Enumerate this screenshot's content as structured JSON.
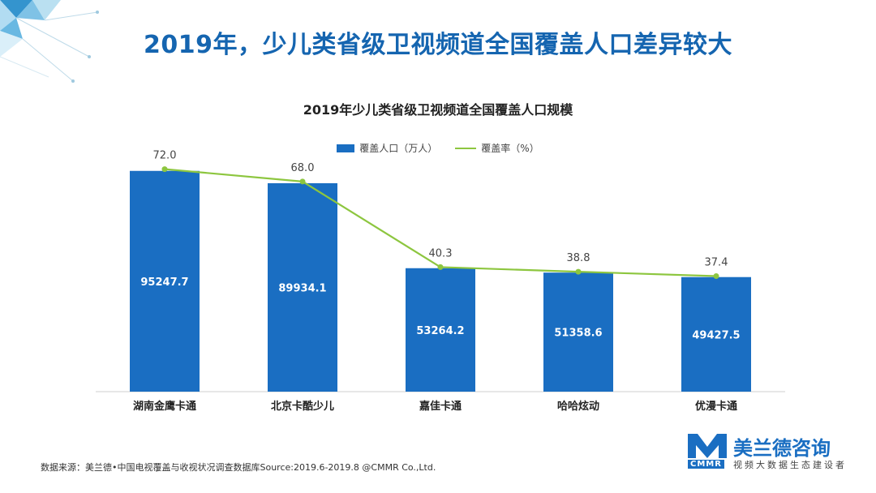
{
  "slide_title": "2019年，少儿类省级卫视频道全国覆盖人口差异较大",
  "legend": {
    "bar_label": "覆盖人口（万人）",
    "line_label": "覆盖率（%）"
  },
  "source": "数据来源：美兰德•中国电视覆盖与收视状况调查数据库Source:2019.6-2019.8 @CMMR Co.,Ltd.",
  "brand": {
    "name": "美兰德咨询",
    "code": "CMMR",
    "tagline": "视频大数据生态建设者"
  },
  "colors": {
    "title": "#1565b0",
    "bar": "#1a6ec2",
    "line": "#8dc63f"
  },
  "icons": [
    "network-triangle-decoration",
    "cmmr-logo-icon"
  ],
  "chart_data": {
    "type": "bar",
    "title": "2019年少儿类省级卫视频道全国覆盖人口规模",
    "categories": [
      "湖南金鹰卡通",
      "北京卡酷少儿",
      "嘉佳卡通",
      "哈哈炫动",
      "优漫卡通"
    ],
    "series": [
      {
        "name": "覆盖人口（万人）",
        "type": "bar",
        "values": [
          95247.7,
          89934.1,
          53264.2,
          51358.6,
          49427.5
        ]
      },
      {
        "name": "覆盖率（%）",
        "type": "line",
        "values": [
          72.0,
          68.0,
          40.3,
          38.8,
          37.4
        ]
      }
    ],
    "data_labels_bar": [
      "95247.7",
      "89934.1",
      "53264.2",
      "51358.6",
      "49427.5"
    ],
    "data_labels_line": [
      "72.0",
      "68.0",
      "40.3",
      "38.8",
      "37.4"
    ],
    "ylim_bar": [
      0,
      120000
    ],
    "ylim_line": [
      0,
      90
    ],
    "grid": false,
    "legend_position": "top"
  }
}
